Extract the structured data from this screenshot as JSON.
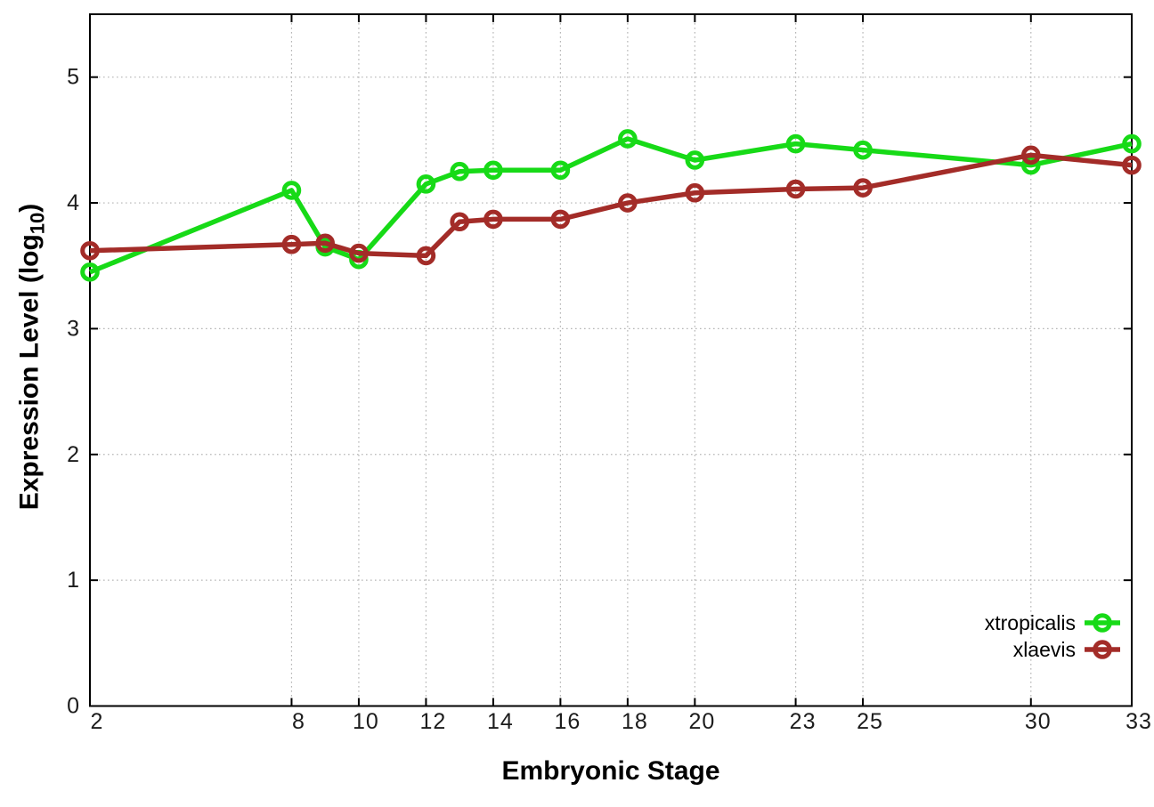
{
  "chart_data": {
    "type": "line",
    "title": "",
    "xlabel": "Embryonic Stage",
    "ylabel": "Expression Level (log10)",
    "ylabel_main": "Expression Level (log",
    "ylabel_sub": "10",
    "ylabel_end": ")",
    "x_ticks": [
      2,
      8,
      10,
      12,
      14,
      16,
      18,
      20,
      23,
      25,
      30,
      33
    ],
    "y_ticks": [
      0,
      1,
      2,
      3,
      4,
      5
    ],
    "xlim": [
      2,
      33
    ],
    "ylim": [
      0,
      5.5
    ],
    "grid": true,
    "legend_position": "inside-bottom-right",
    "x": [
      2,
      8,
      9,
      10,
      12,
      13,
      14,
      16,
      18,
      20,
      23,
      25,
      30,
      33
    ],
    "series": [
      {
        "name": "xtropicalis",
        "color": "#17da17",
        "values": [
          3.45,
          4.1,
          3.65,
          3.55,
          4.15,
          4.25,
          4.26,
          4.26,
          4.51,
          4.34,
          4.47,
          4.42,
          4.3,
          4.47
        ]
      },
      {
        "name": "xlaevis",
        "color": "#a32c28",
        "values": [
          3.62,
          3.67,
          3.68,
          3.6,
          3.58,
          3.85,
          3.87,
          3.87,
          4.0,
          4.08,
          4.11,
          4.12,
          4.38,
          4.3
        ]
      }
    ],
    "colors": {
      "grid": "#b5b5b5",
      "axis": "#000000",
      "tick_label": "#1c1c1c",
      "background": "#ffffff"
    }
  }
}
